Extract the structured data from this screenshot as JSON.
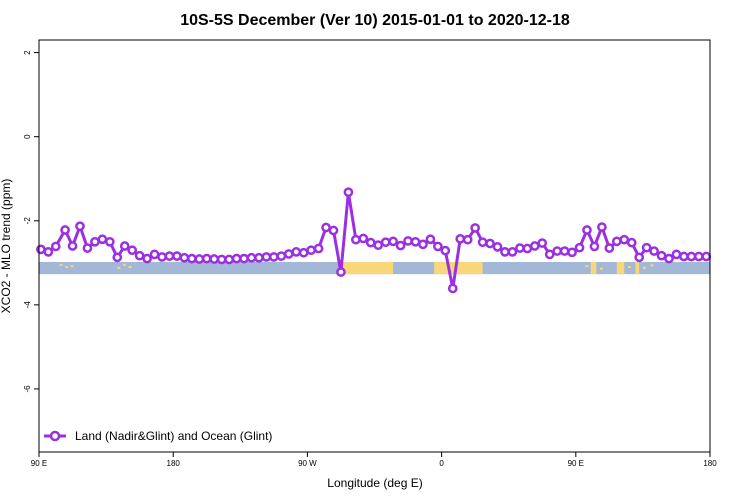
{
  "chart_data": {
    "type": "line",
    "title": "10S-5S December (Ver 10)   2015-01-01 to 2020-12-18",
    "xlabel": "Longitude (deg E)",
    "ylabel": "XCO2 - MLO trend (ppm)",
    "xlim": [
      90,
      450
    ],
    "ylim": [
      -7.5,
      2.3
    ],
    "x_ticks": [
      {
        "value": 90,
        "label": "90 E"
      },
      {
        "value": 162,
        "label": "180"
      },
      {
        "value": 234,
        "label": "90 W"
      },
      {
        "value": 306,
        "label": "0"
      },
      {
        "value": 378,
        "label": "90 E"
      },
      {
        "value": 450,
        "label": "180"
      }
    ],
    "y_ticks": [
      {
        "value": 2,
        "label": "2"
      },
      {
        "value": 0,
        "label": "0"
      },
      {
        "value": -2,
        "label": "-2"
      },
      {
        "value": -4,
        "label": "-4"
      },
      {
        "value": -6,
        "label": "-6"
      }
    ],
    "grid": false,
    "legend_position": "bottom-left",
    "series": [
      {
        "name": "Land (Nadir&Glint) and Ocean (Glint)",
        "color": "#9b30e0",
        "marker": "open-circle",
        "x": [
          91,
          95,
          99,
          104,
          108,
          112,
          116,
          120,
          124,
          128,
          132,
          136,
          140,
          144,
          148,
          152,
          156,
          160,
          164,
          168,
          172,
          176,
          180,
          184,
          188,
          192,
          196,
          200,
          204,
          208,
          212,
          216,
          220,
          224,
          228,
          232,
          236,
          240,
          244,
          248,
          252,
          256,
          260,
          264,
          268,
          272,
          276,
          280,
          284,
          288,
          292,
          296,
          300,
          304,
          308,
          312,
          316,
          320,
          324,
          328,
          332,
          336,
          340,
          344,
          348,
          352,
          356,
          360,
          364,
          368,
          372,
          376,
          380,
          384,
          388,
          392,
          396,
          400,
          404,
          408,
          412,
          416,
          420,
          424,
          428,
          432,
          436,
          440,
          444,
          448
        ],
        "y": [
          -2.68,
          -2.74,
          -2.61,
          -2.22,
          -2.6,
          -2.13,
          -2.65,
          -2.5,
          -2.44,
          -2.5,
          -2.87,
          -2.6,
          -2.7,
          -2.83,
          -2.9,
          -2.8,
          -2.86,
          -2.84,
          -2.84,
          -2.88,
          -2.9,
          -2.91,
          -2.9,
          -2.91,
          -2.92,
          -2.92,
          -2.9,
          -2.9,
          -2.88,
          -2.88,
          -2.86,
          -2.86,
          -2.84,
          -2.79,
          -2.74,
          -2.76,
          -2.7,
          -2.66,
          -2.16,
          -2.23,
          -3.22,
          -1.32,
          -2.45,
          -2.42,
          -2.52,
          -2.58,
          -2.51,
          -2.49,
          -2.59,
          -2.48,
          -2.5,
          -2.56,
          -2.44,
          -2.61,
          -2.71,
          -3.61,
          -2.43,
          -2.45,
          -2.17,
          -2.51,
          -2.54,
          -2.62,
          -2.74,
          -2.74,
          -2.65,
          -2.66,
          -2.6,
          -2.53,
          -2.8,
          -2.72,
          -2.72,
          -2.75,
          -2.64,
          -2.22,
          -2.61,
          -2.15,
          -2.65,
          -2.49,
          -2.45,
          -2.52,
          -2.87,
          -2.64,
          -2.72,
          -2.83,
          -2.9,
          -2.8,
          -2.85,
          -2.85,
          -2.85,
          -2.85
        ]
      }
    ],
    "land_ocean_band": {
      "y_range": [
        -3.27,
        -2.98
      ],
      "ocean_color": "#a3b8d6",
      "land_color": "#f8d77a"
    }
  }
}
